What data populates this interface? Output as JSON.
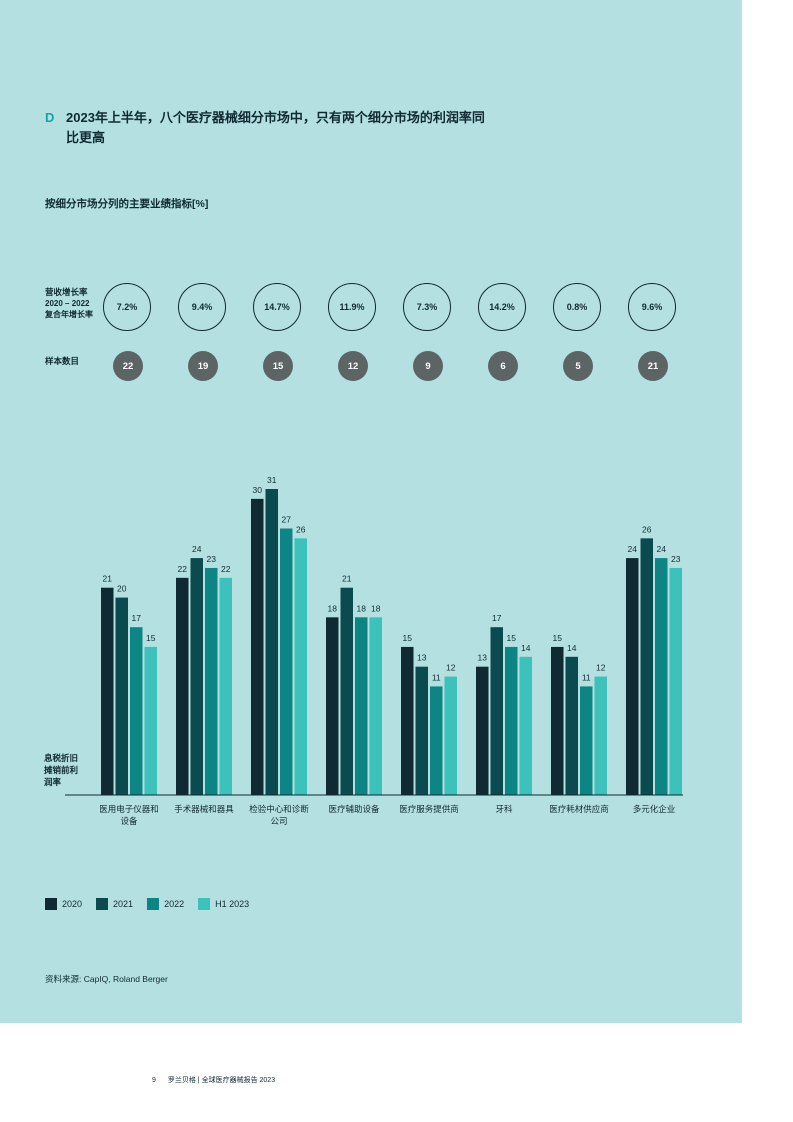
{
  "header": {
    "letter": "D",
    "title_line1": "2023年上半年，八个医疗器械细分市场中，只有两个细分市场的利润率同",
    "title_line2": "比更高"
  },
  "subtitle": "按细分市场分列的主要业绩指标[%]",
  "growth_label": {
    "line1": "营收增长率",
    "line2": "2020 – 2022",
    "line3": "复合年增长率"
  },
  "growth_rates": [
    "7.2%",
    "9.4%",
    "14.7%",
    "11.9%",
    "7.3%",
    "14.2%",
    "0.8%",
    "9.6%"
  ],
  "sample_label": "样本数目",
  "sample_counts": [
    "22",
    "19",
    "15",
    "12",
    "9",
    "6",
    "5",
    "21"
  ],
  "y_axis_label": {
    "line1": "息税折旧",
    "line2": "摊销前利",
    "line3": "润率"
  },
  "colors": {
    "panel_bg": "#b5e0e1",
    "accent": "#1aa3a3",
    "series": [
      "#0f2a33",
      "#0b4a4e",
      "#0d8585",
      "#3cc1bb"
    ]
  },
  "chart_data": {
    "type": "bar",
    "categories": [
      "医用电子仪器和设备",
      "手术器械和器具",
      "检验中心和诊断公司",
      "医疗辅助设备",
      "医疗服务提供商",
      "牙科",
      "医疗耗材供应商",
      "多元化企业"
    ],
    "series": [
      {
        "name": "2020",
        "values": [
          21,
          22,
          30,
          18,
          15,
          13,
          15,
          24
        ]
      },
      {
        "name": "2021",
        "values": [
          20,
          24,
          31,
          21,
          13,
          17,
          14,
          26
        ]
      },
      {
        "name": "2022",
        "values": [
          17,
          23,
          27,
          18,
          11,
          15,
          11,
          24
        ]
      },
      {
        "name": "H1 2023",
        "values": [
          15,
          22,
          26,
          18,
          12,
          14,
          12,
          23
        ]
      }
    ],
    "ylim": [
      0,
      31
    ],
    "legend": "bottom-left"
  },
  "source": "资料来源: CapIQ, Roland Berger",
  "footer": {
    "page": "9",
    "text": "罗兰贝格 | 全球医疗器械报告 2023"
  }
}
